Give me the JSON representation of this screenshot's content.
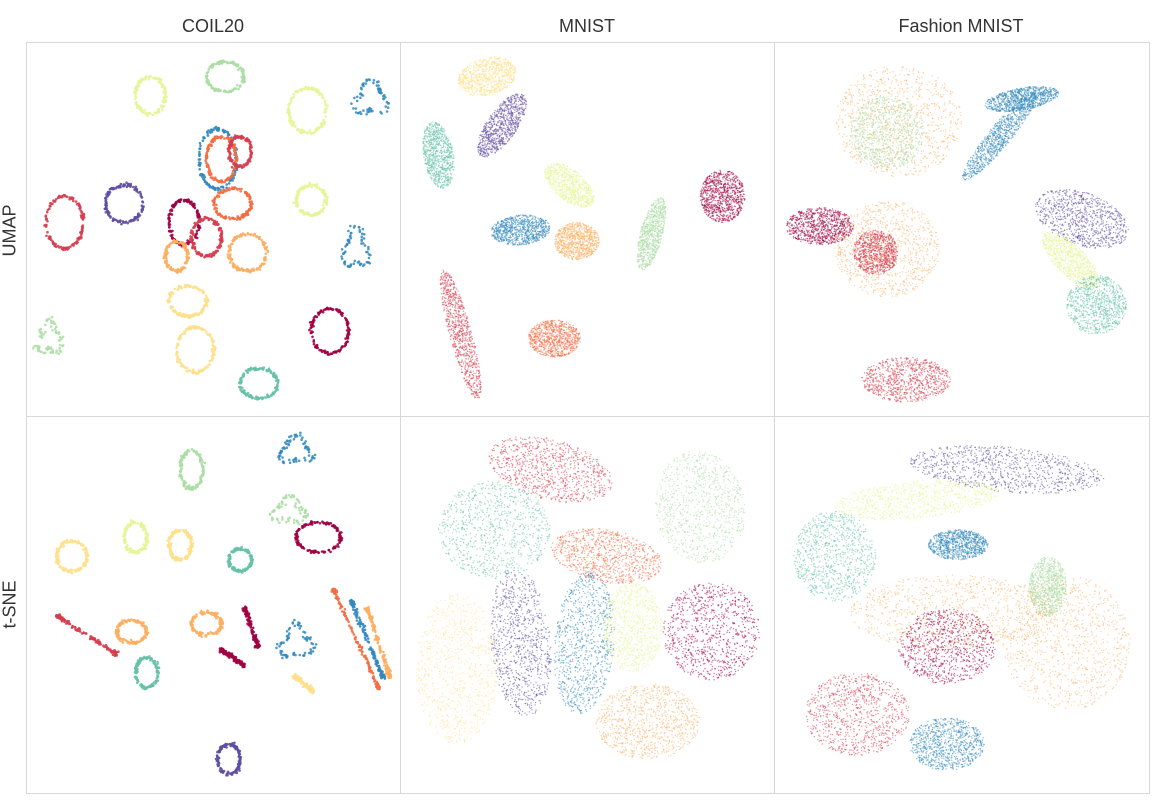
{
  "figure": {
    "columns": [
      "COIL20",
      "MNIST",
      "Fashion MNIST"
    ],
    "rows": [
      "UMAP",
      "t-SNE"
    ]
  },
  "palette": {
    "c0": "#9e0142",
    "c1": "#d53e4f",
    "c2": "#f46d43",
    "c3": "#fdae61",
    "c4": "#fee08b",
    "c5": "#e6f598",
    "c6": "#abdda4",
    "c7": "#66c2a5",
    "c8": "#3288bd",
    "c9": "#5e4fa2"
  },
  "chart_data": [
    {
      "type": "scatter",
      "dataset": "COIL20",
      "method": "UMAP",
      "grid": false,
      "clusters": [
        {
          "color": "c6",
          "shape": "loop",
          "cx": 0.53,
          "cy": 0.09,
          "rx": 0.05,
          "ry": 0.04
        },
        {
          "color": "c5",
          "shape": "loop",
          "cx": 0.33,
          "cy": 0.14,
          "rx": 0.04,
          "ry": 0.05
        },
        {
          "color": "c5",
          "shape": "loop",
          "cx": 0.75,
          "cy": 0.18,
          "rx": 0.05,
          "ry": 0.06
        },
        {
          "color": "c8",
          "shape": "blob",
          "cx": 0.92,
          "cy": 0.15,
          "rx": 0.04,
          "ry": 0.04
        },
        {
          "color": "c8",
          "shape": "loop",
          "cx": 0.51,
          "cy": 0.31,
          "rx": 0.05,
          "ry": 0.08
        },
        {
          "color": "c2",
          "shape": "loop",
          "cx": 0.52,
          "cy": 0.31,
          "rx": 0.04,
          "ry": 0.06
        },
        {
          "color": "c1",
          "shape": "loop",
          "cx": 0.57,
          "cy": 0.29,
          "rx": 0.03,
          "ry": 0.04
        },
        {
          "color": "c9",
          "shape": "loop",
          "cx": 0.26,
          "cy": 0.43,
          "rx": 0.05,
          "ry": 0.05
        },
        {
          "color": "c1",
          "shape": "loop",
          "cx": 0.1,
          "cy": 0.48,
          "rx": 0.05,
          "ry": 0.07
        },
        {
          "color": "c0",
          "shape": "loop",
          "cx": 0.42,
          "cy": 0.48,
          "rx": 0.04,
          "ry": 0.06
        },
        {
          "color": "c1",
          "shape": "loop",
          "cx": 0.48,
          "cy": 0.52,
          "rx": 0.04,
          "ry": 0.05
        },
        {
          "color": "c2",
          "shape": "loop",
          "cx": 0.55,
          "cy": 0.43,
          "rx": 0.05,
          "ry": 0.04
        },
        {
          "color": "c3",
          "shape": "loop",
          "cx": 0.4,
          "cy": 0.57,
          "rx": 0.03,
          "ry": 0.04
        },
        {
          "color": "c3",
          "shape": "loop",
          "cx": 0.59,
          "cy": 0.56,
          "rx": 0.05,
          "ry": 0.05
        },
        {
          "color": "c5",
          "shape": "loop",
          "cx": 0.76,
          "cy": 0.42,
          "rx": 0.04,
          "ry": 0.04
        },
        {
          "color": "c8",
          "shape": "blob",
          "cx": 0.88,
          "cy": 0.55,
          "rx": 0.03,
          "ry": 0.05
        },
        {
          "color": "c4",
          "shape": "loop",
          "cx": 0.43,
          "cy": 0.69,
          "rx": 0.05,
          "ry": 0.04
        },
        {
          "color": "c6",
          "shape": "blob",
          "cx": 0.06,
          "cy": 0.79,
          "rx": 0.03,
          "ry": 0.04
        },
        {
          "color": "c4",
          "shape": "loop",
          "cx": 0.45,
          "cy": 0.82,
          "rx": 0.05,
          "ry": 0.06
        },
        {
          "color": "c0",
          "shape": "loop",
          "cx": 0.81,
          "cy": 0.77,
          "rx": 0.05,
          "ry": 0.06
        },
        {
          "color": "c7",
          "shape": "loop",
          "cx": 0.62,
          "cy": 0.91,
          "rx": 0.05,
          "ry": 0.04
        }
      ]
    },
    {
      "type": "scatter",
      "dataset": "MNIST",
      "method": "UMAP",
      "grid": false,
      "clusters": [
        {
          "color": "c4",
          "shape": "cloud",
          "cx": 0.23,
          "cy": 0.09,
          "rx": 0.08,
          "ry": 0.05,
          "angle": -15
        },
        {
          "color": "c9",
          "shape": "cloud",
          "cx": 0.27,
          "cy": 0.22,
          "rx": 0.1,
          "ry": 0.04,
          "angle": -55
        },
        {
          "color": "c7",
          "shape": "cloud",
          "cx": 0.1,
          "cy": 0.3,
          "rx": 0.09,
          "ry": 0.04,
          "angle": 80
        },
        {
          "color": "c5",
          "shape": "cloud",
          "cx": 0.45,
          "cy": 0.38,
          "rx": 0.08,
          "ry": 0.04,
          "angle": 40
        },
        {
          "color": "c8",
          "shape": "cloud",
          "cx": 0.32,
          "cy": 0.5,
          "rx": 0.08,
          "ry": 0.04,
          "angle": -5
        },
        {
          "color": "c3",
          "shape": "cloud",
          "cx": 0.47,
          "cy": 0.53,
          "rx": 0.06,
          "ry": 0.05,
          "angle": 0
        },
        {
          "color": "c6",
          "shape": "cloud",
          "cx": 0.67,
          "cy": 0.51,
          "rx": 0.1,
          "ry": 0.03,
          "angle": -75
        },
        {
          "color": "c0",
          "shape": "cloud",
          "cx": 0.86,
          "cy": 0.41,
          "rx": 0.06,
          "ry": 0.07,
          "angle": 0
        },
        {
          "color": "c1",
          "shape": "cloud",
          "cx": 0.16,
          "cy": 0.78,
          "rx": 0.18,
          "ry": 0.03,
          "angle": 75
        },
        {
          "color": "c2",
          "shape": "cloud",
          "cx": 0.41,
          "cy": 0.79,
          "rx": 0.07,
          "ry": 0.05,
          "angle": 0
        }
      ]
    },
    {
      "type": "scatter",
      "dataset": "Fashion MNIST",
      "method": "UMAP",
      "grid": false,
      "clusters": [
        {
          "color": "c3",
          "shape": "cloud",
          "cx": 0.33,
          "cy": 0.21,
          "rx": 0.17,
          "ry": 0.15,
          "angle": 0
        },
        {
          "color": "c6",
          "shape": "cloud",
          "cx": 0.3,
          "cy": 0.24,
          "rx": 0.1,
          "ry": 0.1,
          "angle": 0
        },
        {
          "color": "c8",
          "shape": "cloud",
          "cx": 0.6,
          "cy": 0.25,
          "rx": 0.15,
          "ry": 0.03,
          "angle": -50
        },
        {
          "color": "c8",
          "shape": "cloud",
          "cx": 0.66,
          "cy": 0.15,
          "rx": 0.1,
          "ry": 0.03,
          "angle": -10
        },
        {
          "color": "c0",
          "shape": "cloud",
          "cx": 0.12,
          "cy": 0.49,
          "rx": 0.09,
          "ry": 0.05,
          "angle": 0
        },
        {
          "color": "c3",
          "shape": "cloud",
          "cx": 0.3,
          "cy": 0.55,
          "rx": 0.14,
          "ry": 0.13,
          "angle": 0
        },
        {
          "color": "c1",
          "shape": "cloud",
          "cx": 0.27,
          "cy": 0.56,
          "rx": 0.06,
          "ry": 0.06,
          "angle": 0
        },
        {
          "color": "c9",
          "shape": "cloud",
          "cx": 0.82,
          "cy": 0.47,
          "rx": 0.13,
          "ry": 0.07,
          "angle": 20
        },
        {
          "color": "c5",
          "shape": "cloud",
          "cx": 0.79,
          "cy": 0.58,
          "rx": 0.1,
          "ry": 0.04,
          "angle": 45
        },
        {
          "color": "c7",
          "shape": "cloud",
          "cx": 0.86,
          "cy": 0.7,
          "rx": 0.08,
          "ry": 0.08,
          "angle": 0
        },
        {
          "color": "c1",
          "shape": "cloud",
          "cx": 0.35,
          "cy": 0.9,
          "rx": 0.12,
          "ry": 0.06,
          "angle": 0
        }
      ]
    },
    {
      "type": "scatter",
      "dataset": "COIL20",
      "method": "t-SNE",
      "grid": false,
      "clusters": [
        {
          "color": "c8",
          "shape": "blob",
          "cx": 0.72,
          "cy": 0.09,
          "rx": 0.04,
          "ry": 0.03
        },
        {
          "color": "c6",
          "shape": "loop",
          "cx": 0.44,
          "cy": 0.14,
          "rx": 0.03,
          "ry": 0.05
        },
        {
          "color": "c6",
          "shape": "blob",
          "cx": 0.7,
          "cy": 0.25,
          "rx": 0.04,
          "ry": 0.03
        },
        {
          "color": "c0",
          "shape": "loop",
          "cx": 0.78,
          "cy": 0.32,
          "rx": 0.06,
          "ry": 0.04
        },
        {
          "color": "c4",
          "shape": "loop",
          "cx": 0.12,
          "cy": 0.37,
          "rx": 0.04,
          "ry": 0.04
        },
        {
          "color": "c5",
          "shape": "loop",
          "cx": 0.29,
          "cy": 0.32,
          "rx": 0.03,
          "ry": 0.04
        },
        {
          "color": "c4",
          "shape": "loop",
          "cx": 0.41,
          "cy": 0.34,
          "rx": 0.03,
          "ry": 0.04
        },
        {
          "color": "c7",
          "shape": "loop",
          "cx": 0.57,
          "cy": 0.38,
          "rx": 0.03,
          "ry": 0.03
        },
        {
          "color": "c1",
          "shape": "arc",
          "cx": 0.16,
          "cy": 0.58,
          "rx": 0.13,
          "ry": 0.05
        },
        {
          "color": "c3",
          "shape": "loop",
          "cx": 0.28,
          "cy": 0.57,
          "rx": 0.04,
          "ry": 0.03
        },
        {
          "color": "c3",
          "shape": "loop",
          "cx": 0.48,
          "cy": 0.55,
          "rx": 0.04,
          "ry": 0.03
        },
        {
          "color": "c0",
          "shape": "arc",
          "cx": 0.6,
          "cy": 0.56,
          "rx": 0.03,
          "ry": 0.05
        },
        {
          "color": "c8",
          "shape": "blob",
          "cx": 0.72,
          "cy": 0.6,
          "rx": 0.04,
          "ry": 0.04
        },
        {
          "color": "c2",
          "shape": "arc",
          "cx": 0.88,
          "cy": 0.59,
          "rx": 0.1,
          "ry": 0.13
        },
        {
          "color": "c8",
          "shape": "arc",
          "cx": 0.91,
          "cy": 0.59,
          "rx": 0.07,
          "ry": 0.1
        },
        {
          "color": "c3",
          "shape": "arc",
          "cx": 0.94,
          "cy": 0.6,
          "rx": 0.05,
          "ry": 0.09
        },
        {
          "color": "c0",
          "shape": "arc",
          "cx": 0.55,
          "cy": 0.64,
          "rx": 0.05,
          "ry": 0.02
        },
        {
          "color": "c4",
          "shape": "arc",
          "cx": 0.74,
          "cy": 0.71,
          "rx": 0.04,
          "ry": 0.02
        },
        {
          "color": "c7",
          "shape": "loop",
          "cx": 0.32,
          "cy": 0.68,
          "rx": 0.03,
          "ry": 0.04
        },
        {
          "color": "c9",
          "shape": "loop",
          "cx": 0.54,
          "cy": 0.91,
          "rx": 0.03,
          "ry": 0.04
        }
      ]
    },
    {
      "type": "scatter",
      "dataset": "MNIST",
      "method": "t-SNE",
      "grid": false,
      "clusters": [
        {
          "color": "c1",
          "shape": "cloud",
          "cx": 0.4,
          "cy": 0.14,
          "rx": 0.17,
          "ry": 0.08,
          "angle": 15
        },
        {
          "color": "c6",
          "shape": "cloud",
          "cx": 0.8,
          "cy": 0.24,
          "rx": 0.12,
          "ry": 0.15,
          "angle": -10
        },
        {
          "color": "c7",
          "shape": "cloud",
          "cx": 0.25,
          "cy": 0.3,
          "rx": 0.15,
          "ry": 0.13,
          "angle": 0
        },
        {
          "color": "c2",
          "shape": "cloud",
          "cx": 0.55,
          "cy": 0.37,
          "rx": 0.15,
          "ry": 0.07,
          "angle": 10
        },
        {
          "color": "c9",
          "shape": "cloud",
          "cx": 0.32,
          "cy": 0.6,
          "rx": 0.08,
          "ry": 0.2,
          "angle": -5
        },
        {
          "color": "c8",
          "shape": "cloud",
          "cx": 0.49,
          "cy": 0.6,
          "rx": 0.08,
          "ry": 0.19,
          "angle": 5
        },
        {
          "color": "c5",
          "shape": "cloud",
          "cx": 0.62,
          "cy": 0.56,
          "rx": 0.08,
          "ry": 0.12,
          "angle": 0
        },
        {
          "color": "c0",
          "shape": "cloud",
          "cx": 0.83,
          "cy": 0.57,
          "rx": 0.13,
          "ry": 0.13,
          "angle": 0
        },
        {
          "color": "c4",
          "shape": "cloud",
          "cx": 0.15,
          "cy": 0.67,
          "rx": 0.11,
          "ry": 0.2,
          "angle": 0
        },
        {
          "color": "c3",
          "shape": "cloud",
          "cx": 0.66,
          "cy": 0.81,
          "rx": 0.14,
          "ry": 0.1,
          "angle": 0
        }
      ]
    },
    {
      "type": "scatter",
      "dataset": "Fashion MNIST",
      "method": "t-SNE",
      "grid": false,
      "clusters": [
        {
          "color": "c9",
          "shape": "cloud",
          "cx": 0.62,
          "cy": 0.14,
          "rx": 0.26,
          "ry": 0.06,
          "angle": 5
        },
        {
          "color": "c5",
          "shape": "cloud",
          "cx": 0.38,
          "cy": 0.22,
          "rx": 0.22,
          "ry": 0.05,
          "angle": -5
        },
        {
          "color": "c7",
          "shape": "cloud",
          "cx": 0.16,
          "cy": 0.37,
          "rx": 0.11,
          "ry": 0.12,
          "angle": 0
        },
        {
          "color": "c8",
          "shape": "cloud",
          "cx": 0.49,
          "cy": 0.34,
          "rx": 0.08,
          "ry": 0.04,
          "angle": 0
        },
        {
          "color": "c3",
          "shape": "cloud",
          "cx": 0.48,
          "cy": 0.52,
          "rx": 0.28,
          "ry": 0.1,
          "angle": 0
        },
        {
          "color": "c3",
          "shape": "cloud",
          "cx": 0.78,
          "cy": 0.6,
          "rx": 0.17,
          "ry": 0.18,
          "angle": 0
        },
        {
          "color": "c6",
          "shape": "cloud",
          "cx": 0.73,
          "cy": 0.45,
          "rx": 0.05,
          "ry": 0.08,
          "angle": 0
        },
        {
          "color": "c0",
          "shape": "cloud",
          "cx": 0.46,
          "cy": 0.61,
          "rx": 0.13,
          "ry": 0.1,
          "angle": 0
        },
        {
          "color": "c1",
          "shape": "cloud",
          "cx": 0.22,
          "cy": 0.79,
          "rx": 0.14,
          "ry": 0.11,
          "angle": 0
        },
        {
          "color": "c8",
          "shape": "cloud",
          "cx": 0.46,
          "cy": 0.87,
          "rx": 0.1,
          "ry": 0.07,
          "angle": 0
        }
      ]
    }
  ]
}
